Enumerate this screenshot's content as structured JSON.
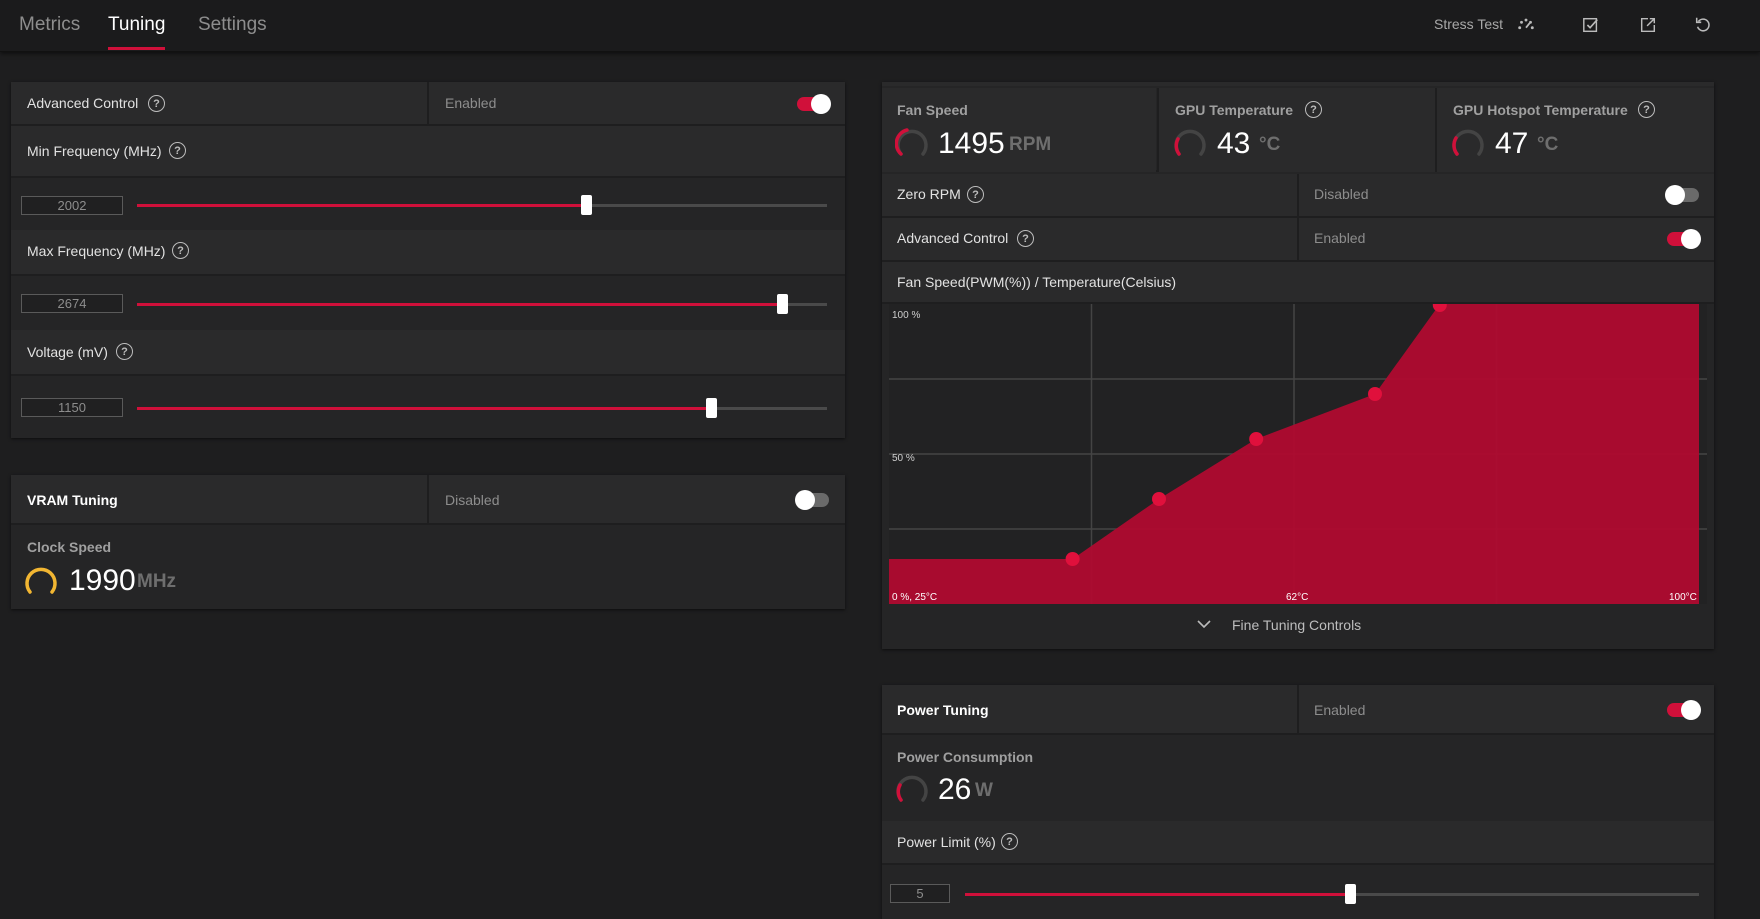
{
  "tabs": [
    {
      "label": "Metrics"
    },
    {
      "label": "Tuning"
    },
    {
      "label": "Settings"
    }
  ],
  "toolbar": {
    "stress_test_label": "Stress Test",
    "icons": [
      "gauge-icon",
      "checklist-icon",
      "export-icon",
      "reset-icon"
    ]
  },
  "gpu_tuning": {
    "advanced_control": {
      "label": "Advanced Control",
      "status": "Enabled",
      "on": true
    },
    "min_frequency": {
      "label": "Min Frequency (MHz)",
      "value": "2002",
      "fraction": 0.65
    },
    "max_frequency": {
      "label": "Max Frequency (MHz)",
      "value": "2674",
      "fraction": 0.935
    },
    "voltage": {
      "label": "Voltage (mV)",
      "value": "1150",
      "fraction": 0.832
    }
  },
  "vram_tuning": {
    "label": "VRAM Tuning",
    "status": "Disabled",
    "on": false,
    "clock_speed": {
      "label": "Clock Speed",
      "value": "1990",
      "unit": "MHz"
    }
  },
  "fan_tuning": {
    "fan_speed": {
      "label": "Fan Speed",
      "value": "1495",
      "unit": "RPM"
    },
    "gpu_temperature": {
      "label": "GPU Temperature",
      "value": "43",
      "unit": "°C"
    },
    "gpu_hotspot_temperature": {
      "label": "GPU Hotspot Temperature",
      "value": "47",
      "unit": "°C"
    },
    "zero_rpm": {
      "label": "Zero RPM",
      "status": "Disabled",
      "on": false
    },
    "advanced_control": {
      "label": "Advanced Control",
      "status": "Enabled",
      "on": true
    },
    "curve_title": "Fan Speed(PWM(%)) / Temperature(Celsius)",
    "fine_tuning_label": "Fine Tuning Controls"
  },
  "chart_data": {
    "type": "area",
    "x": [
      25,
      42,
      50,
      59,
      70,
      76,
      100
    ],
    "y": [
      15,
      15,
      35,
      55,
      70,
      100,
      100
    ],
    "control_points_x": [
      42,
      50,
      59,
      70,
      76
    ],
    "control_points_y": [
      15,
      35,
      55,
      70,
      100
    ],
    "xlim": [
      25,
      100
    ],
    "ylim": [
      0,
      100
    ],
    "y_tick_labels": [
      "100 %",
      "50 %"
    ],
    "x_tick_labels": [
      "0 %, 25°C",
      "62°C",
      "100°C"
    ],
    "grid": true,
    "color": "#b00b30",
    "point_color": "#e0103c"
  },
  "power_tuning": {
    "label": "Power Tuning",
    "status": "Enabled",
    "on": true,
    "power_consumption": {
      "label": "Power Consumption",
      "value": "26",
      "unit": "W"
    },
    "power_limit": {
      "label": "Power Limit (%)",
      "value": "5",
      "fraction": 0.525
    }
  },
  "colors": {
    "accent": "#d0103a",
    "gauge_yellow": "#f2b632"
  }
}
